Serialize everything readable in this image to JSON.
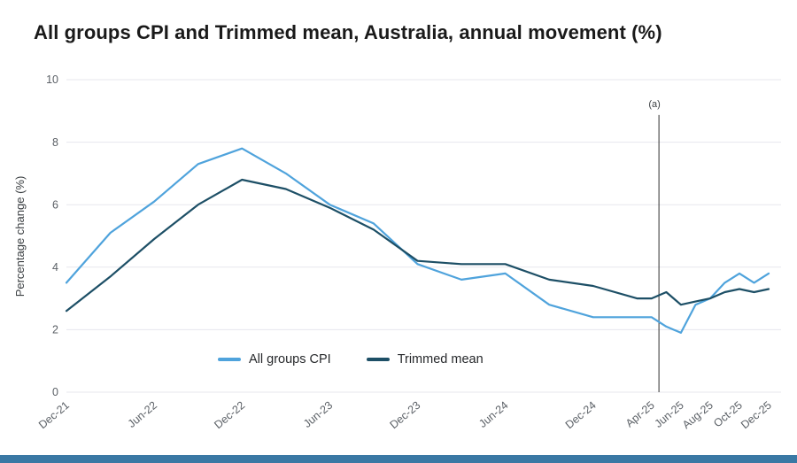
{
  "colors": {
    "cpi_line": "#4fa3dc",
    "trimmed_line": "#1d4f66",
    "grid": "#e7e7ee",
    "axis_text": "#5b6066",
    "title_text": "#1a1a1a",
    "annotation": "#2f2f2f",
    "footer_bar": "#3a78a4"
  },
  "chart_data": {
    "type": "line",
    "title": "All groups CPI and Trimmed mean, Australia, annual movement (%)",
    "ylabel": "Percentage change (%)",
    "ylim": [
      0,
      10
    ],
    "yticks": [
      0,
      2,
      4,
      6,
      8,
      10
    ],
    "grid": "horizontal",
    "legend_position": "bottom-inside",
    "x_axis": {
      "unit": "months since Dec-21",
      "tick_labels": [
        "Dec-21",
        "Jun-22",
        "Dec-22",
        "Jun-23",
        "Dec-23",
        "Jun-24",
        "Dec-24",
        "Apr-25",
        "Jun-25",
        "Aug-25",
        "Oct-25",
        "Dec-25"
      ],
      "tick_months": [
        0,
        6,
        12,
        18,
        24,
        30,
        36,
        40,
        42,
        44,
        46,
        48
      ],
      "tick_rotation_deg": -40
    },
    "annotation": {
      "label": "(a)",
      "month": 40.5,
      "top_value": 8.87,
      "bottom_value": 0
    },
    "periods": [
      "Dec-21",
      "Mar-22",
      "Jun-22",
      "Sep-22",
      "Dec-22",
      "Mar-23",
      "Jun-23",
      "Sep-23",
      "Dec-23",
      "Mar-24",
      "Jun-24",
      "Sep-24",
      "Dec-24",
      "Mar-25",
      "Apr-25",
      "May-25",
      "Jun-25",
      "Jul-25",
      "Aug-25",
      "Sep-25",
      "Oct-25",
      "Nov-25",
      "Dec-25"
    ],
    "period_months": [
      0,
      3,
      6,
      9,
      12,
      15,
      18,
      21,
      24,
      27,
      30,
      33,
      36,
      39,
      40,
      41,
      42,
      43,
      44,
      45,
      46,
      47,
      48
    ],
    "series": [
      {
        "name": "All groups CPI",
        "color": "#4fa3dc",
        "values": [
          3.5,
          5.1,
          6.1,
          7.3,
          7.8,
          7.0,
          6.0,
          5.4,
          4.1,
          3.6,
          3.8,
          2.8,
          2.4,
          2.4,
          2.4,
          2.1,
          1.9,
          2.8,
          3.0,
          3.5,
          3.8,
          3.5,
          3.8
        ]
      },
      {
        "name": "Trimmed mean",
        "color": "#1d4f66",
        "values": [
          2.6,
          3.7,
          4.9,
          6.0,
          6.8,
          6.5,
          5.9,
          5.2,
          4.2,
          4.1,
          4.1,
          3.6,
          3.4,
          3.0,
          3.0,
          3.2,
          2.8,
          2.9,
          3.0,
          3.2,
          3.3,
          3.2,
          3.3
        ]
      }
    ]
  }
}
